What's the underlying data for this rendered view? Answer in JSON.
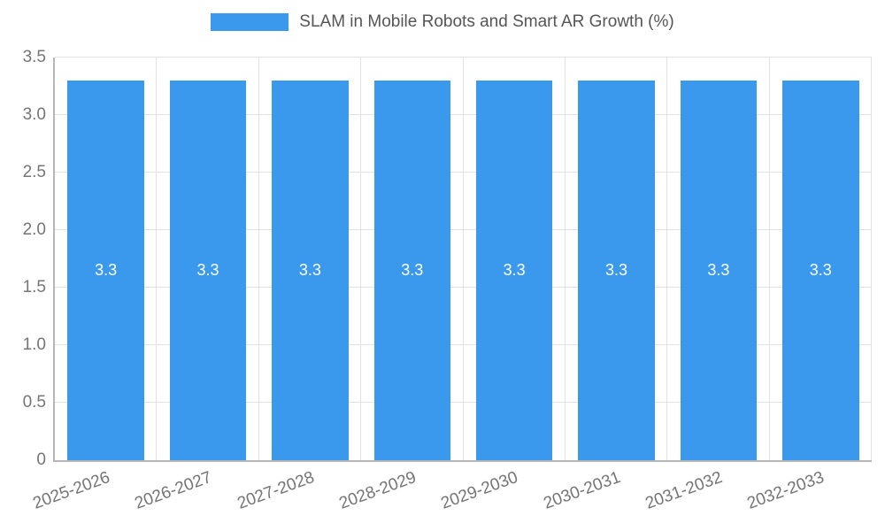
{
  "legend": {
    "label": "SLAM in Mobile Robots and Smart AR Growth (%)"
  },
  "chart_data": {
    "type": "bar",
    "title": "SLAM in Mobile Robots and Smart AR Growth (%)",
    "categories": [
      "2025-2026",
      "2026-2027",
      "2027-2028",
      "2028-2029",
      "2029-2030",
      "2030-2031",
      "2031-2032",
      "2032-2033"
    ],
    "values": [
      3.3,
      3.3,
      3.3,
      3.3,
      3.3,
      3.3,
      3.3,
      3.3
    ],
    "bar_labels": [
      "3.3",
      "3.3",
      "3.3",
      "3.3",
      "3.3",
      "3.3",
      "3.3",
      "3.3"
    ],
    "xlabel": "",
    "ylabel": "",
    "ylim": [
      0,
      3.5
    ],
    "yticks": [
      0,
      0.5,
      1,
      1.5,
      2,
      2.5,
      3,
      3.5
    ],
    "ytick_labels": [
      "0",
      "0.5",
      "1.0",
      "1.5",
      "2.0",
      "2.5",
      "3.0",
      "3.5"
    ],
    "grid": true,
    "legend_position": "top",
    "x_label_rotation_deg": 20,
    "bar_width_fraction": 0.75,
    "colors": {
      "bar": "#3a99ec",
      "bar_label": "#ffffff",
      "axis": "#b6b6b6",
      "grid": "#e2e2e2",
      "tick_text": "#757575",
      "title_text": "#555555",
      "background": "#ffffff"
    }
  }
}
